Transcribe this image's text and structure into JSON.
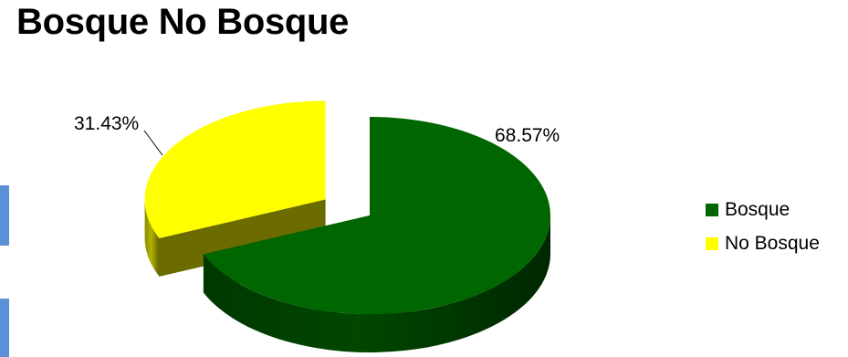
{
  "chart_data": {
    "type": "pie",
    "title": "Bosque No Bosque",
    "categories": [
      "Bosque",
      "No Bosque"
    ],
    "values": [
      68.57,
      31.43
    ],
    "data_labels": [
      "68.57%",
      "31.43%"
    ],
    "colors": [
      "#006600",
      "#ffff00"
    ],
    "style": "3d-exploded",
    "legend_position": "right"
  },
  "legend": {
    "items": [
      {
        "label": "Bosque",
        "color": "#006600"
      },
      {
        "label": "No Bosque",
        "color": "#ffff00"
      }
    ]
  }
}
